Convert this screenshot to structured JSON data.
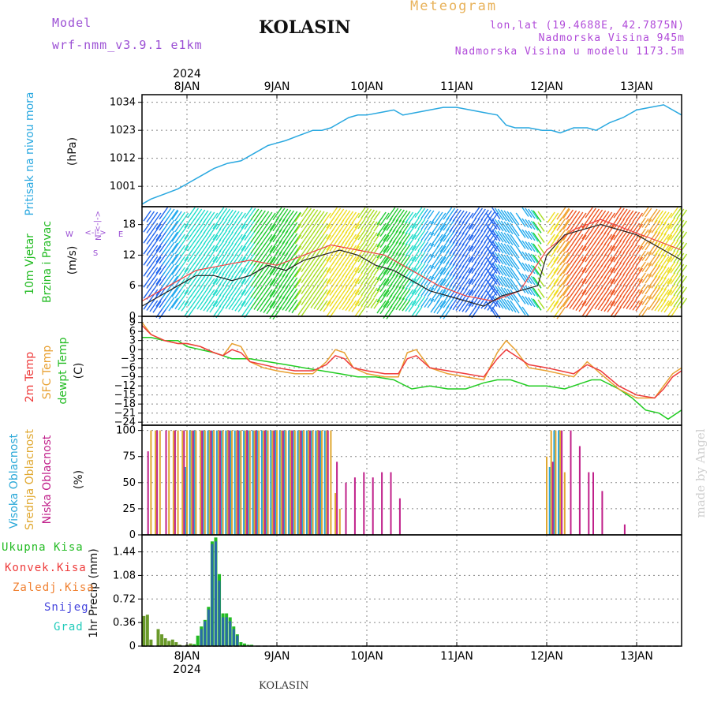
{
  "header": {
    "model_label": "Model",
    "model_name": "wrf-nmm_v3.9.1 e1km",
    "station": "KOLASIN",
    "product": "Meteogram",
    "lonlat": "lon,lat (19.4688E, 42.7875N)",
    "altitude": "Nadmorska Visina 945m",
    "model_altitude": "Nadmorska Visina u modelu 1173.5m"
  },
  "footer": {
    "station": "KOLASIN",
    "credit": "made by Angel"
  },
  "colors": {
    "pressure": "#29a8e0",
    "temp_2m": "#ee3b3b",
    "temp_sfc": "#e8a030",
    "dewpoint": "#22cc22",
    "cloud_high": "#2aa8d8",
    "cloud_mid": "#e0a830",
    "cloud_low": "#c0208a",
    "precip_total": "#22bb22",
    "precip_conv": "#ee3b3b",
    "precip_frozen": "#f08030",
    "precip_snow": "#4444dd",
    "precip_graupel": "#22ccbb",
    "title_purple": "#9b4fd4"
  },
  "chart_data": [
    {
      "type": "line",
      "panel": "pressure",
      "ylabel_1": "Pritisak na nivou mora",
      "ylabel_2": "(hPa)",
      "top_year": "2024",
      "day_labels": [
        "8JAN",
        "9JAN",
        "10JAN",
        "11JAN",
        "12JAN",
        "13JAN"
      ],
      "day_positions": [
        8.0,
        9.0,
        10.0,
        11.0,
        12.0,
        13.0
      ],
      "xlim": [
        7.5,
        13.5
      ],
      "yticks": [
        1001,
        1012,
        1023,
        1034
      ],
      "ylim": [
        993,
        1037
      ],
      "grid": true,
      "series": [
        {
          "x": [
            7.5,
            7.6,
            7.75,
            7.9,
            8.0,
            8.15,
            8.3,
            8.45,
            8.6,
            8.75,
            8.9,
            9.0,
            9.1,
            9.25,
            9.4,
            9.5,
            9.6,
            9.7,
            9.8,
            9.9,
            10.0,
            10.15,
            10.3,
            10.4,
            10.55,
            10.7,
            10.85,
            11.0,
            11.15,
            11.3,
            11.45,
            11.55,
            11.65,
            11.8,
            11.95,
            12.05,
            12.15,
            12.3,
            12.45,
            12.55,
            12.7,
            12.85,
            13.0,
            13.15,
            13.3,
            13.5
          ],
          "values": [
            994,
            996,
            998,
            1000,
            1002,
            1005,
            1008,
            1010,
            1011,
            1014,
            1017,
            1018,
            1019,
            1021,
            1023,
            1023,
            1024,
            1026,
            1028,
            1029,
            1029,
            1030,
            1031,
            1029,
            1030,
            1031,
            1032,
            1032,
            1031,
            1030,
            1029,
            1025,
            1024,
            1024,
            1023,
            1023,
            1022,
            1024,
            1024,
            1023,
            1026,
            1028,
            1031,
            1032,
            1033,
            1029
          ]
        }
      ]
    },
    {
      "type": "line",
      "panel": "wind",
      "ylabel_1": "10m Vjetar",
      "ylabel_2": "Brzina i Pravac",
      "ylabel_3": "(m/s)",
      "compass": {
        "north": "N",
        "south": "S",
        "east": "E",
        "west": "W",
        "arrow_top": "<-|->",
        "arrow_side": "<-|->"
      },
      "yticks": [
        0,
        6,
        12,
        18
      ],
      "ylim": [
        0,
        21.5
      ],
      "grid": true,
      "series": [
        {
          "name": "speed",
          "x": [
            7.5,
            7.7,
            7.9,
            8.1,
            8.3,
            8.5,
            8.7,
            8.9,
            9.1,
            9.3,
            9.5,
            9.7,
            9.9,
            10.1,
            10.3,
            10.5,
            10.7,
            10.9,
            11.1,
            11.3,
            11.5,
            11.7,
            11.9,
            12.0,
            12.2,
            12.4,
            12.6,
            12.8,
            13.0,
            13.2,
            13.4,
            13.5
          ],
          "values": [
            2,
            4,
            6,
            8,
            8,
            7,
            8,
            10,
            9,
            11,
            12,
            13,
            12,
            10,
            9,
            7,
            5,
            4,
            3,
            2,
            4,
            5,
            6,
            12,
            16,
            17,
            18,
            17,
            16,
            14,
            12,
            11
          ]
        },
        {
          "name": "gust",
          "x": [
            7.5,
            7.8,
            8.1,
            8.4,
            8.7,
            9.0,
            9.3,
            9.6,
            9.9,
            10.2,
            10.5,
            10.8,
            11.1,
            11.4,
            11.7,
            12.0,
            12.3,
            12.6,
            12.9,
            13.2,
            13.5
          ],
          "values": [
            3,
            6,
            9,
            10,
            11,
            10,
            12,
            14,
            13,
            12,
            9,
            6,
            4,
            3,
            5,
            13,
            17,
            19,
            17,
            15,
            13
          ]
        }
      ]
    },
    {
      "type": "line",
      "panel": "temperature",
      "ylabel_1": "2m Temp",
      "ylabel_2": "SFC Temp",
      "ylabel_3": "dewpt Temp",
      "ylabel_4": "(C)",
      "yticks": [
        9,
        6,
        3,
        0,
        -3,
        -6,
        -9,
        -12,
        -15,
        -18,
        -21,
        -24
      ],
      "ytick_labels": [
        "9",
        "6",
        "3",
        "0",
        "−3",
        "−6",
        "−9",
        "−12",
        "−15",
        "−18",
        "−21",
        "−24"
      ],
      "ylim": [
        -25,
        11
      ],
      "grid": true,
      "series": [
        {
          "name": "2m Temp",
          "x": [
            7.5,
            7.6,
            7.75,
            7.9,
            8.0,
            8.15,
            8.3,
            8.4,
            8.5,
            8.6,
            8.7,
            8.85,
            9.0,
            9.2,
            9.4,
            9.55,
            9.65,
            9.75,
            9.85,
            10.0,
            10.2,
            10.35,
            10.45,
            10.55,
            10.7,
            10.9,
            11.1,
            11.3,
            11.45,
            11.55,
            11.65,
            11.8,
            12.0,
            12.15,
            12.3,
            12.45,
            12.6,
            12.8,
            13.0,
            13.2,
            13.3,
            13.4,
            13.5
          ],
          "values": [
            8,
            5,
            3,
            2,
            2,
            1,
            -1,
            -2,
            0,
            -1,
            -4,
            -5,
            -6,
            -7,
            -7,
            -5,
            -2,
            -3,
            -6,
            -7,
            -8,
            -8,
            -3,
            -2,
            -6,
            -7,
            -8,
            -9,
            -3,
            0,
            -2,
            -5,
            -6,
            -7,
            -8,
            -5,
            -7,
            -12,
            -15,
            -16,
            -13,
            -9,
            -7
          ]
        },
        {
          "name": "SFC Temp",
          "x": [
            7.5,
            7.6,
            7.75,
            7.9,
            8.0,
            8.15,
            8.3,
            8.4,
            8.5,
            8.6,
            8.7,
            8.85,
            9.0,
            9.2,
            9.4,
            9.55,
            9.65,
            9.75,
            9.85,
            10.0,
            10.2,
            10.35,
            10.45,
            10.55,
            10.7,
            10.9,
            11.1,
            11.3,
            11.45,
            11.55,
            11.65,
            11.8,
            12.0,
            12.15,
            12.3,
            12.45,
            12.6,
            12.8,
            13.0,
            13.2,
            13.3,
            13.4,
            13.5
          ],
          "values": [
            9,
            5,
            3,
            2,
            2,
            1,
            -1,
            -2,
            2,
            1,
            -4,
            -6,
            -7,
            -8,
            -8,
            -4,
            0,
            -1,
            -6,
            -8,
            -9,
            -9,
            -1,
            0,
            -6,
            -8,
            -9,
            -10,
            -1,
            3,
            0,
            -6,
            -7,
            -8,
            -9,
            -4,
            -8,
            -13,
            -16,
            -16,
            -12,
            -8,
            -6
          ]
        },
        {
          "name": "dewpt Temp",
          "x": [
            7.5,
            7.6,
            7.75,
            7.9,
            8.0,
            8.15,
            8.3,
            8.5,
            8.7,
            8.9,
            9.1,
            9.3,
            9.5,
            9.7,
            9.9,
            10.1,
            10.3,
            10.5,
            10.7,
            10.9,
            11.1,
            11.3,
            11.45,
            11.6,
            11.8,
            12.0,
            12.2,
            12.4,
            12.5,
            12.6,
            12.8,
            12.95,
            13.1,
            13.25,
            13.35,
            13.5
          ],
          "values": [
            4,
            4,
            3,
            3,
            1,
            0,
            -1,
            -3,
            -3,
            -4,
            -5,
            -6,
            -7,
            -8,
            -9,
            -9,
            -10,
            -13,
            -12,
            -13,
            -13,
            -11,
            -10,
            -10,
            -12,
            -12,
            -13,
            -11,
            -10,
            -10,
            -13,
            -16,
            -20,
            -21,
            -23,
            -20
          ]
        }
      ]
    },
    {
      "type": "bar",
      "panel": "cloud",
      "ylabel_1": "Visoka Oblacnost",
      "ylabel_2": "Srednja Oblacnost",
      "ylabel_3": "Niska Oblacnost",
      "ylabel_4": "(%)",
      "yticks": [
        0,
        25,
        50,
        75,
        100
      ],
      "ylim": [
        0,
        105
      ],
      "grid": true,
      "series": [
        {
          "name": "Visoka Oblacnost",
          "x": [
            8.0,
            8.05,
            8.1,
            8.2,
            8.25,
            8.3,
            8.35,
            8.4,
            8.45,
            8.5,
            8.55,
            8.6,
            8.65,
            8.7,
            8.75,
            8.8,
            8.85,
            8.9,
            8.95,
            9.0,
            9.05,
            9.1,
            9.15,
            9.2,
            9.25,
            9.3,
            9.35,
            9.4,
            9.45,
            9.5,
            9.55,
            12.05,
            12.1,
            12.15
          ],
          "values": [
            65,
            100,
            100,
            100,
            100,
            100,
            100,
            100,
            100,
            100,
            100,
            100,
            100,
            100,
            100,
            100,
            100,
            100,
            100,
            100,
            100,
            100,
            100,
            100,
            100,
            100,
            100,
            100,
            100,
            100,
            100,
            65,
            100,
            100
          ]
        },
        {
          "name": "Srednja Oblacnost",
          "x": [
            7.6,
            7.65,
            7.7,
            7.8,
            7.85,
            7.9,
            7.95,
            8.0,
            8.05,
            8.1,
            8.15,
            8.2,
            8.25,
            8.3,
            8.35,
            8.4,
            8.45,
            8.5,
            8.55,
            8.6,
            8.65,
            8.7,
            8.75,
            8.8,
            8.85,
            8.9,
            8.95,
            9.0,
            9.05,
            9.1,
            9.15,
            9.2,
            9.25,
            9.3,
            9.35,
            9.4,
            9.45,
            9.5,
            9.55,
            9.6,
            9.65,
            9.7,
            12.0,
            12.05,
            12.1,
            12.15,
            12.2
          ],
          "values": [
            100,
            100,
            100,
            100,
            100,
            100,
            100,
            100,
            100,
            100,
            100,
            100,
            100,
            100,
            100,
            100,
            100,
            100,
            100,
            100,
            100,
            100,
            100,
            100,
            100,
            100,
            100,
            100,
            100,
            100,
            100,
            100,
            100,
            100,
            100,
            100,
            100,
            100,
            100,
            100,
            40,
            25,
            75,
            100,
            100,
            100,
            60
          ]
        },
        {
          "name": "Niska Oblacnost",
          "x": [
            7.55,
            7.65,
            7.75,
            7.85,
            7.95,
            8.05,
            8.15,
            8.25,
            8.35,
            8.45,
            8.55,
            8.65,
            8.75,
            8.85,
            8.95,
            9.05,
            9.15,
            9.25,
            9.35,
            9.45,
            9.55,
            9.65,
            9.75,
            9.85,
            9.95,
            10.05,
            10.15,
            10.25,
            10.35,
            12.05,
            12.15,
            12.25,
            12.35,
            12.45,
            12.5,
            12.6,
            12.7,
            12.75,
            12.85,
            12.95
          ],
          "values": [
            80,
            100,
            100,
            100,
            100,
            100,
            100,
            100,
            100,
            100,
            100,
            100,
            100,
            100,
            100,
            100,
            100,
            100,
            100,
            100,
            100,
            70,
            50,
            55,
            60,
            55,
            60,
            60,
            35,
            70,
            100,
            100,
            85,
            60,
            60,
            42,
            5,
            8,
            10,
            5
          ]
        }
      ]
    },
    {
      "type": "bar",
      "panel": "precip",
      "ylabel_1": "1hr Precip (mm)",
      "legend": [
        "Ukupna Kisa",
        "Konvek.Kisa",
        "Zaledj.Kisa",
        "Snijeg",
        "Grad"
      ],
      "bottom_year": "2024",
      "yticks": [
        0,
        0.36,
        0.72,
        1.08,
        1.44
      ],
      "ytick_labels": [
        "0",
        "0.36",
        "0.72",
        "1.08",
        "1.44"
      ],
      "ylim": [
        0,
        1.7
      ],
      "grid": true,
      "series": [
        {
          "name": "Ukupna Kisa",
          "x": [
            7.52,
            7.56,
            7.6,
            7.68,
            7.72,
            7.76,
            7.8,
            7.84,
            7.88,
            7.92,
            8.0,
            8.04,
            8.08,
            8.12,
            8.16,
            8.2,
            8.24,
            8.28,
            8.32,
            8.36,
            8.4,
            8.44,
            8.48,
            8.52,
            8.56,
            8.6,
            8.64,
            8.68,
            8.72
          ],
          "values": [
            0.46,
            0.48,
            0.1,
            0.26,
            0.18,
            0.12,
            0.08,
            0.1,
            0.06,
            0.02,
            0.02,
            0.04,
            0.03,
            0.16,
            0.3,
            0.4,
            0.6,
            1.6,
            1.66,
            1.1,
            0.5,
            0.5,
            0.44,
            0.3,
            0.18,
            0.06,
            0.04,
            0.02,
            0.02
          ]
        },
        {
          "name": "Snijeg",
          "x": [
            8.16,
            8.2,
            8.24,
            8.28,
            8.32,
            8.36,
            8.4,
            8.44,
            8.48,
            8.52,
            8.56
          ],
          "values": [
            0.26,
            0.38,
            0.56,
            1.56,
            1.6,
            1.0,
            0.44,
            0.44,
            0.38,
            0.26,
            0.16
          ]
        }
      ]
    }
  ]
}
